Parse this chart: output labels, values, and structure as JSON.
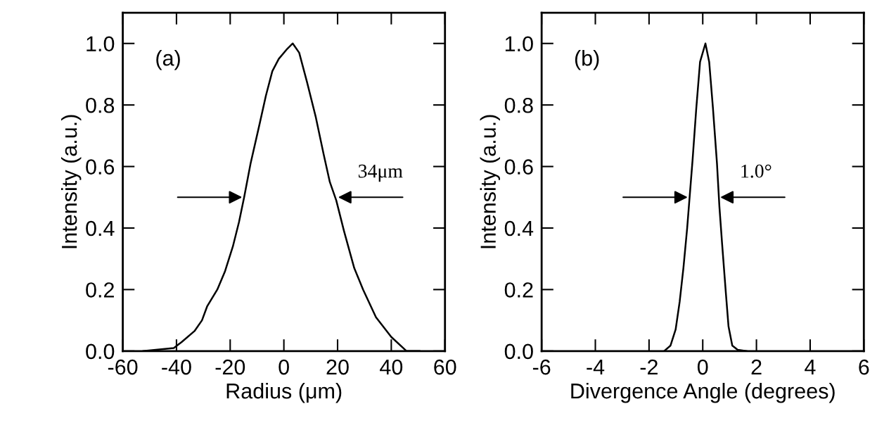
{
  "chart_data": [
    {
      "type": "line",
      "xlabel": "Radius (μm)",
      "ylabel": "Intensity (a.u.)",
      "xlim": [
        -60,
        60
      ],
      "xticks": [
        -60,
        -40,
        -20,
        0,
        20,
        40,
        60
      ],
      "ylim": [
        0,
        1.1
      ],
      "yticks": [
        {
          "value": 0,
          "label": "0.0"
        },
        {
          "value": 0.2,
          "label": "0.2"
        },
        {
          "value": 0.4,
          "label": "0.4"
        },
        {
          "value": 0.6,
          "label": "0.6"
        },
        {
          "value": 0.8,
          "label": "0.8"
        },
        {
          "value": 1,
          "label": "1.0"
        }
      ],
      "grid": false,
      "legend": false,
      "marker": "none",
      "line_style": "solid",
      "annotations": [
        "(a)",
        {
          "text": "34μm",
          "x": 19.5,
          "y": 0.5
        }
      ],
      "series": [
        {
          "color": "#000000",
          "x": [
            -52.4,
            -41,
            -38,
            -33.3,
            -30.5,
            -28.6,
            -24.8,
            -21.9,
            -19,
            -16.7,
            -14.8,
            -12.4,
            -9,
            -6.7,
            -4.3,
            -1.9,
            1,
            3.3,
            5.7,
            8.6,
            11.9,
            14.8,
            17.1,
            19.5,
            22.4,
            26.2,
            29.5,
            34.3,
            40,
            45.7,
            50.5
          ],
          "values": [
            0,
            0.01,
            0.03,
            0.065,
            0.1,
            0.145,
            0.2,
            0.26,
            0.34,
            0.42,
            0.5,
            0.61,
            0.74,
            0.83,
            0.91,
            0.95,
            0.98,
            1.0,
            0.97,
            0.875,
            0.76,
            0.64,
            0.55,
            0.49,
            0.39,
            0.27,
            0.2,
            0.11,
            0.046,
            0.0,
            0
          ]
        }
      ]
    },
    {
      "type": "line",
      "xlabel": "Divergence Angle (degrees)",
      "ylabel": "Intensity (a.u.)",
      "xlim": [
        -6,
        6
      ],
      "xticks": [
        -6,
        -4,
        -2,
        0,
        2,
        4,
        6
      ],
      "ylim": [
        0,
        1.1
      ],
      "yticks": [
        {
          "value": 0,
          "label": "0.0"
        },
        {
          "value": 0.2,
          "label": "0.2"
        },
        {
          "value": 0.4,
          "label": "0.4"
        },
        {
          "value": 0.6,
          "label": "0.6"
        },
        {
          "value": 0.8,
          "label": "0.8"
        },
        {
          "value": 1,
          "label": "1.0"
        }
      ],
      "grid": false,
      "legend": false,
      "marker": "none",
      "line_style": "solid",
      "annotations": [
        "(b)",
        {
          "text": "1.0°",
          "x": 0.58,
          "y": 0.5
        }
      ],
      "series": [
        {
          "color": "#000000",
          "x": [
            -1.44,
            -1.2,
            -1.01,
            -0.86,
            -0.72,
            -0.58,
            -0.48,
            -0.38,
            -0.24,
            -0.1,
            0.1,
            0.24,
            0.38,
            0.53,
            0.62,
            0.72,
            0.86,
            0.96,
            1.1,
            1.3,
            1.63
          ],
          "values": [
            0,
            0.018,
            0.07,
            0.16,
            0.27,
            0.4,
            0.51,
            0.62,
            0.79,
            0.94,
            1.0,
            0.94,
            0.79,
            0.61,
            0.47,
            0.35,
            0.19,
            0.08,
            0.018,
            0.004,
            0
          ]
        }
      ]
    }
  ]
}
